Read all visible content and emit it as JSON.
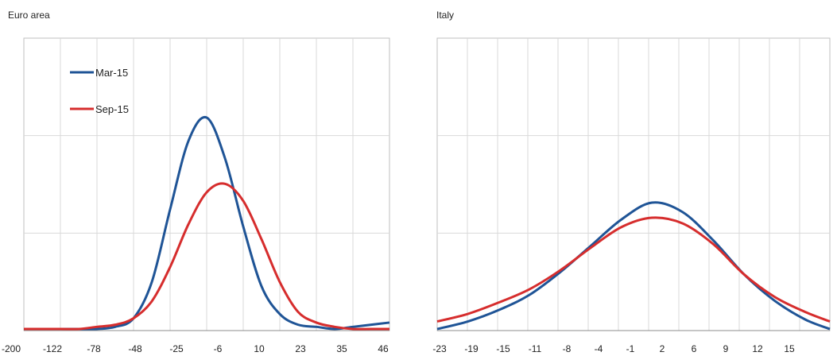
{
  "chart_data": [
    {
      "type": "line",
      "title": "Euro area",
      "xlabel": "",
      "ylabel": "",
      "x_tick_labels": [
        "-200",
        "-122",
        "-78",
        "-48",
        "-25",
        "-6",
        "10",
        "23",
        "35",
        "46"
      ],
      "grid": true,
      "legend": {
        "placement": "top-left"
      },
      "series": [
        {
          "name": "Mar-15",
          "color": "#1f5496",
          "x": [
            0,
            0.5,
            1,
            1.5,
            2,
            2.5,
            3,
            3.5,
            4,
            4.5,
            5,
            5.5,
            6,
            6.5,
            7,
            7.5,
            8,
            8.5,
            9,
            9.5,
            10
          ],
          "y": [
            0.0,
            0.0,
            0.0,
            0.0,
            0.0,
            0.01,
            0.05,
            0.22,
            0.56,
            0.88,
            0.99,
            0.8,
            0.48,
            0.2,
            0.07,
            0.02,
            0.01,
            0.0,
            0.01,
            0.02,
            0.03
          ]
        },
        {
          "name": "Sep-15",
          "color": "#d62d2d",
          "x": [
            0,
            0.5,
            1,
            1.5,
            2,
            2.5,
            3,
            3.5,
            4,
            4.5,
            5,
            5.5,
            6,
            6.5,
            7,
            7.5,
            8,
            8.5,
            9,
            9.5,
            10
          ],
          "y": [
            0.0,
            0.0,
            0.0,
            0.0,
            0.01,
            0.02,
            0.05,
            0.13,
            0.29,
            0.49,
            0.64,
            0.68,
            0.6,
            0.42,
            0.22,
            0.08,
            0.03,
            0.01,
            0.0,
            0.0,
            0.0
          ]
        }
      ]
    },
    {
      "type": "line",
      "title": "Italy",
      "xlabel": "",
      "ylabel": "",
      "x_tick_labels": [
        "-23",
        "-19",
        "-15",
        "-11",
        "-8",
        "-4",
        "-1",
        "2",
        "6",
        "9",
        "12",
        "15"
      ],
      "grid": true,
      "series": [
        {
          "name": "Mar-15",
          "color": "#1f5496",
          "x": [
            0,
            1,
            2,
            3,
            4,
            5,
            6,
            7,
            8,
            9,
            10,
            11,
            12,
            12.8
          ],
          "y": [
            0.0,
            0.04,
            0.1,
            0.18,
            0.3,
            0.44,
            0.58,
            0.67,
            0.62,
            0.47,
            0.29,
            0.15,
            0.05,
            0.0
          ]
        },
        {
          "name": "Sep-15",
          "color": "#d62d2d",
          "x": [
            0,
            1,
            2,
            3,
            4,
            5,
            6,
            7,
            8,
            9,
            10,
            11,
            12,
            12.8
          ],
          "y": [
            0.04,
            0.08,
            0.14,
            0.21,
            0.31,
            0.43,
            0.54,
            0.59,
            0.56,
            0.45,
            0.29,
            0.17,
            0.09,
            0.04
          ]
        }
      ]
    }
  ]
}
